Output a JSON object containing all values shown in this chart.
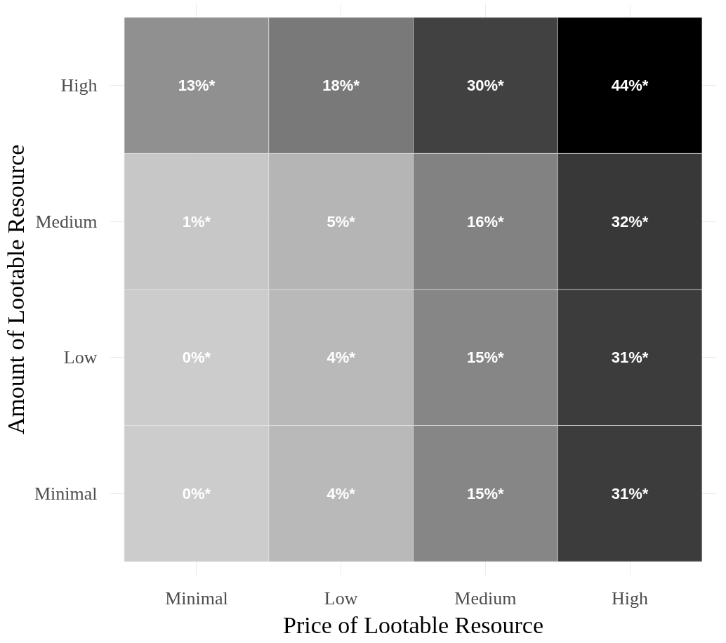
{
  "chart_data": {
    "type": "heatmap",
    "xlabel": "Price of Lootable Resource",
    "ylabel": "Amount of Lootable Resource",
    "categories": [
      "Minimal",
      "Low",
      "Medium",
      "High"
    ],
    "y_categories": [
      "High",
      "Medium",
      "Low",
      "Minimal"
    ],
    "cells": [
      [
        13,
        18,
        30,
        44
      ],
      [
        1,
        5,
        16,
        32
      ],
      [
        0,
        4,
        15,
        31
      ],
      [
        0,
        4,
        15,
        31
      ]
    ],
    "cell_labels": [
      [
        "13%*",
        "18%*",
        "30%*",
        "44%*"
      ],
      [
        "1%*",
        "5%*",
        "16%*",
        "32%*"
      ],
      [
        "0%*",
        "4%*",
        "15%*",
        "31%*"
      ],
      [
        "0%*",
        "4%*",
        "15%*",
        "31%*"
      ]
    ],
    "grid": true
  }
}
